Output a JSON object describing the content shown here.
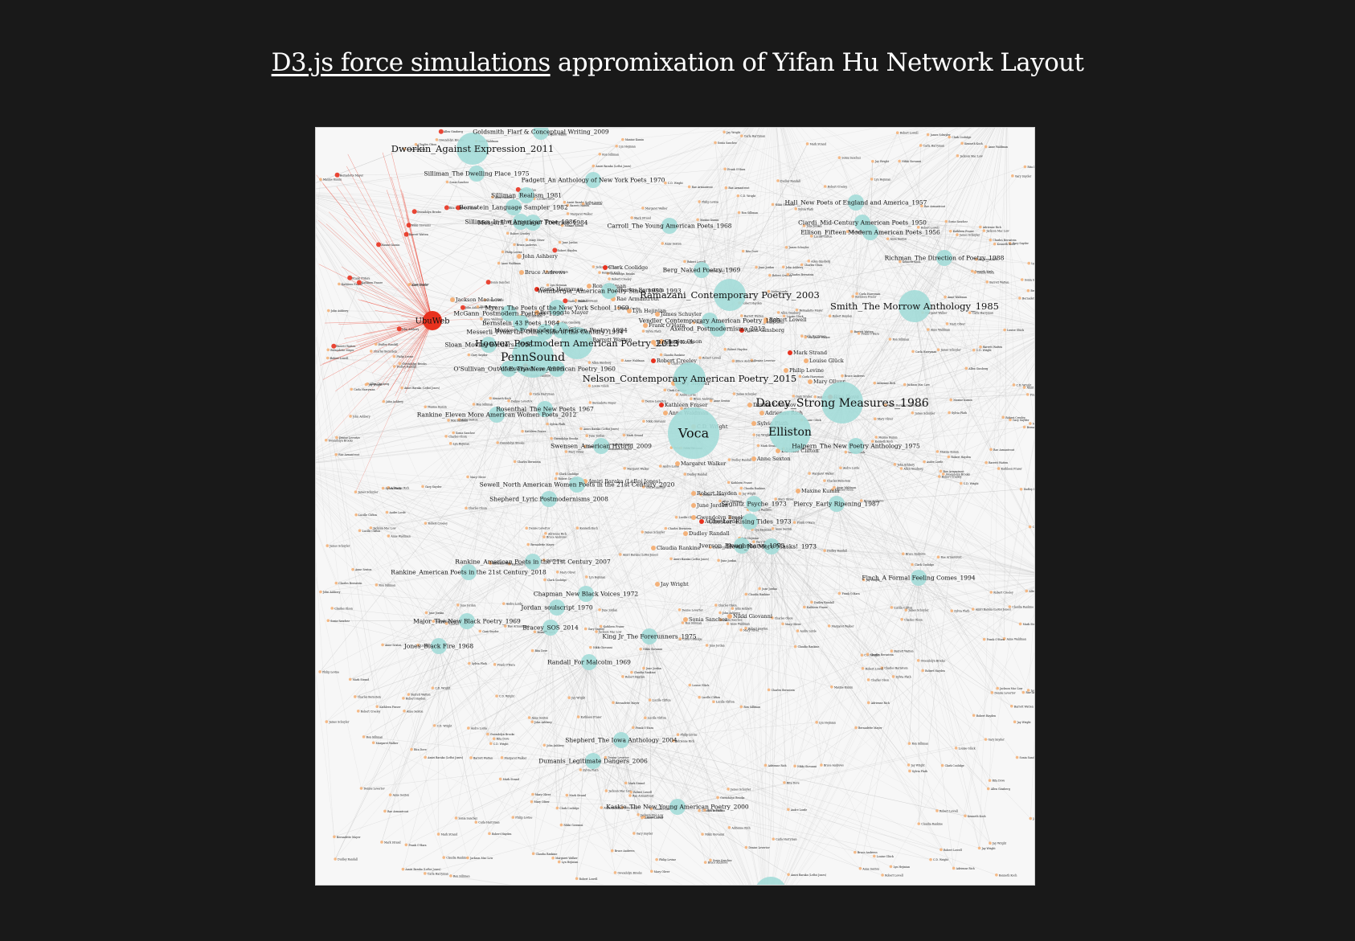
{
  "header": {
    "link_text": "D3.js force simulations",
    "title_rest": " appromixation of Yifan Hu Network Layout"
  },
  "colors": {
    "background": "#191919",
    "panel": "#f7f7f7",
    "hub_node": "#a3dcd8",
    "poet_node": "#f4b27a",
    "highlight_node": "#e8321f",
    "edge": "#b7b7b7",
    "highlight_edge": "#e8321f"
  },
  "graph": {
    "hubs": [
      {
        "label": "Voca",
        "size": "xl"
      },
      {
        "label": "PennSound",
        "size": "l"
      },
      {
        "label": "Elliston",
        "size": "l"
      },
      {
        "label": "Dacey_Strong Measures_1986",
        "size": "l"
      },
      {
        "label": "Hoover_Postmodern American Poetry_2013",
        "size": "m"
      },
      {
        "label": "Nelson_Contemporary American Poetry_2015",
        "size": "m"
      },
      {
        "label": "Ramazani_Contemporary Poetry_2003",
        "size": "m"
      },
      {
        "label": "Smith_The Morrow Anthology_1985",
        "size": "m"
      },
      {
        "label": "Dworkin_Against Expression_2011",
        "size": "m"
      },
      {
        "label": "Richman_The Direction of Poetry_1988",
        "size": "s"
      },
      {
        "label": "Hall_New Poets of England and America_1957",
        "size": "s"
      },
      {
        "label": "Halpern_The New Poetry Anthology_1975",
        "size": "s"
      },
      {
        "label": "Piercy_Early Ripening_1987",
        "size": "s"
      },
      {
        "label": "Chester_Rising Tides_1973",
        "size": "s"
      },
      {
        "label": "Howe_No More Masks!_1973",
        "size": "s"
      },
      {
        "label": "Finch_A Formal Feeling Comes_1994",
        "size": "s"
      },
      {
        "label": "Major_The New Black Poetry_1969",
        "size": "s"
      },
      {
        "label": "Jones_Black Fire_1968",
        "size": "s"
      },
      {
        "label": "Bracey_SOS_2014",
        "size": "s"
      },
      {
        "label": "Randall_For Malcolm_1969",
        "size": "s"
      },
      {
        "label": "Dumanis_Legitimate Dangers_2006",
        "size": "s"
      },
      {
        "label": "Allen_The New American Poetry_1960",
        "size": "s"
      },
      {
        "label": "Carroll_The Young American Poets_1968",
        "size": "s"
      },
      {
        "label": "Chapman_New Black Voices_1972",
        "size": "s"
      },
      {
        "label": "Swensen_American Hybrid_2009",
        "size": "s"
      },
      {
        "label": "Vendler_Contemporary American Poetry_1985",
        "size": "s"
      },
      {
        "label": "Weinberger_American Poetry Since 1950_1993",
        "size": "s"
      },
      {
        "label": "Padgett_An Anthology of New York Poets_1970",
        "size": "s"
      },
      {
        "label": "Silliman_The Dwelling Place_1975",
        "size": "s"
      },
      {
        "label": "Silliman_Realism_1981",
        "size": "s"
      },
      {
        "label": "Messerli_\"Language\" Poetries_1984",
        "size": "s"
      },
      {
        "label": "O'Sullivan_Out of Everywhere_1996",
        "size": "s"
      },
      {
        "label": "Sloan_Moving Borders_1998",
        "size": "s"
      },
      {
        "label": "Rankine_American Poets in the 21st Century_2007",
        "size": "s"
      },
      {
        "label": "Rankine_American Poets in the 21st Century_2018",
        "size": "s"
      },
      {
        "label": "Shepherd_The Iowa Anthology_2004",
        "size": "s"
      },
      {
        "label": "Ellison_Fifteen Modern American Poets_1956",
        "size": "s"
      },
      {
        "label": "Ciardi_Mid-Century American Poets_1950",
        "size": "s"
      },
      {
        "label": "Berg_Naked Poetry_1969",
        "size": "s"
      },
      {
        "label": "Jordan_soulscript_1970",
        "size": "s"
      },
      {
        "label": "King Jr_The Forerunners_1975",
        "size": "s"
      },
      {
        "label": "Shepherd_Lyric Postmodernisms_2008",
        "size": "s"
      },
      {
        "label": "Sewell_North American Women Poets in the 21st Century_2020",
        "size": "s"
      },
      {
        "label": "Segnitz_Psyche_1973",
        "size": "s"
      },
      {
        "label": "Iverson_Ploughshares_1973",
        "size": "s"
      },
      {
        "label": "Goldsmith_Flarf & Conceptual Writing_2009",
        "size": "s"
      },
      {
        "label": "Bernstein_Language Sampler_1982",
        "size": "s"
      },
      {
        "label": "Silliman_In the American Tree_1986",
        "size": "s"
      },
      {
        "label": "Messerli_From the Other Side of the Century_1994",
        "size": "s"
      },
      {
        "label": "Hoover_Postmodern American Poetry_1994",
        "size": "s"
      },
      {
        "label": "Rankine_Eleven More American Women Poets_2012",
        "size": "s"
      },
      {
        "label": "Axelrod_Postmodernisms_2012",
        "size": "s"
      },
      {
        "label": "Bernstein_43 Poets_1984",
        "size": "s"
      },
      {
        "label": "McGann_Postmodern Poetries_1990",
        "size": "s"
      },
      {
        "label": "Myers_The Poets of the New York School_1969",
        "size": "s"
      },
      {
        "label": "Rosenthal_The New Poets_1967",
        "size": "s"
      },
      {
        "label": "Kaskie_The New Young American Poetry_2000",
        "size": "s"
      },
      {
        "label": "UbuWeb",
        "size": "red"
      }
    ],
    "poets": [
      "Charles Bernstein",
      "Lyn Hejinian",
      "Frank O'Hara",
      "Kenneth Koch",
      "Robert Creeley",
      "Gary Snyder",
      "Adrienne Rich",
      "Denise Levertov",
      "Sylvia Plath",
      "Kathleen Fraser",
      "Amiri Baraka (LeRoi Jones)",
      "Robert Hayden",
      "June Jordan",
      "Gwendolyn Brooks",
      "Audre Lorde",
      "Anne Sexton",
      "Maxine Kumin",
      "Nikki Giovanni",
      "Sonia Sanchez",
      "Clark Coolidge",
      "Ron Silliman",
      "John Ashbery",
      "Bruce Andrews",
      "Charles Olson",
      "Allen Ginsberg",
      "Robert Lowell",
      "Rae Armantrout",
      "Barrett Watten",
      "James Schuyler",
      "Carla Harryman",
      "Jackson Mac Low",
      "Bernadette Mayer",
      "Lucille Clifton",
      "Anne Waldman",
      "Mark Strand",
      "Mary Oliver",
      "Louise Glück",
      "Philip Levine",
      "C.D. Wright",
      "Rita Dove",
      "Margaret Walker",
      "Dudley Randall",
      "Claudia Rankine",
      "Jay Wright"
    ]
  }
}
